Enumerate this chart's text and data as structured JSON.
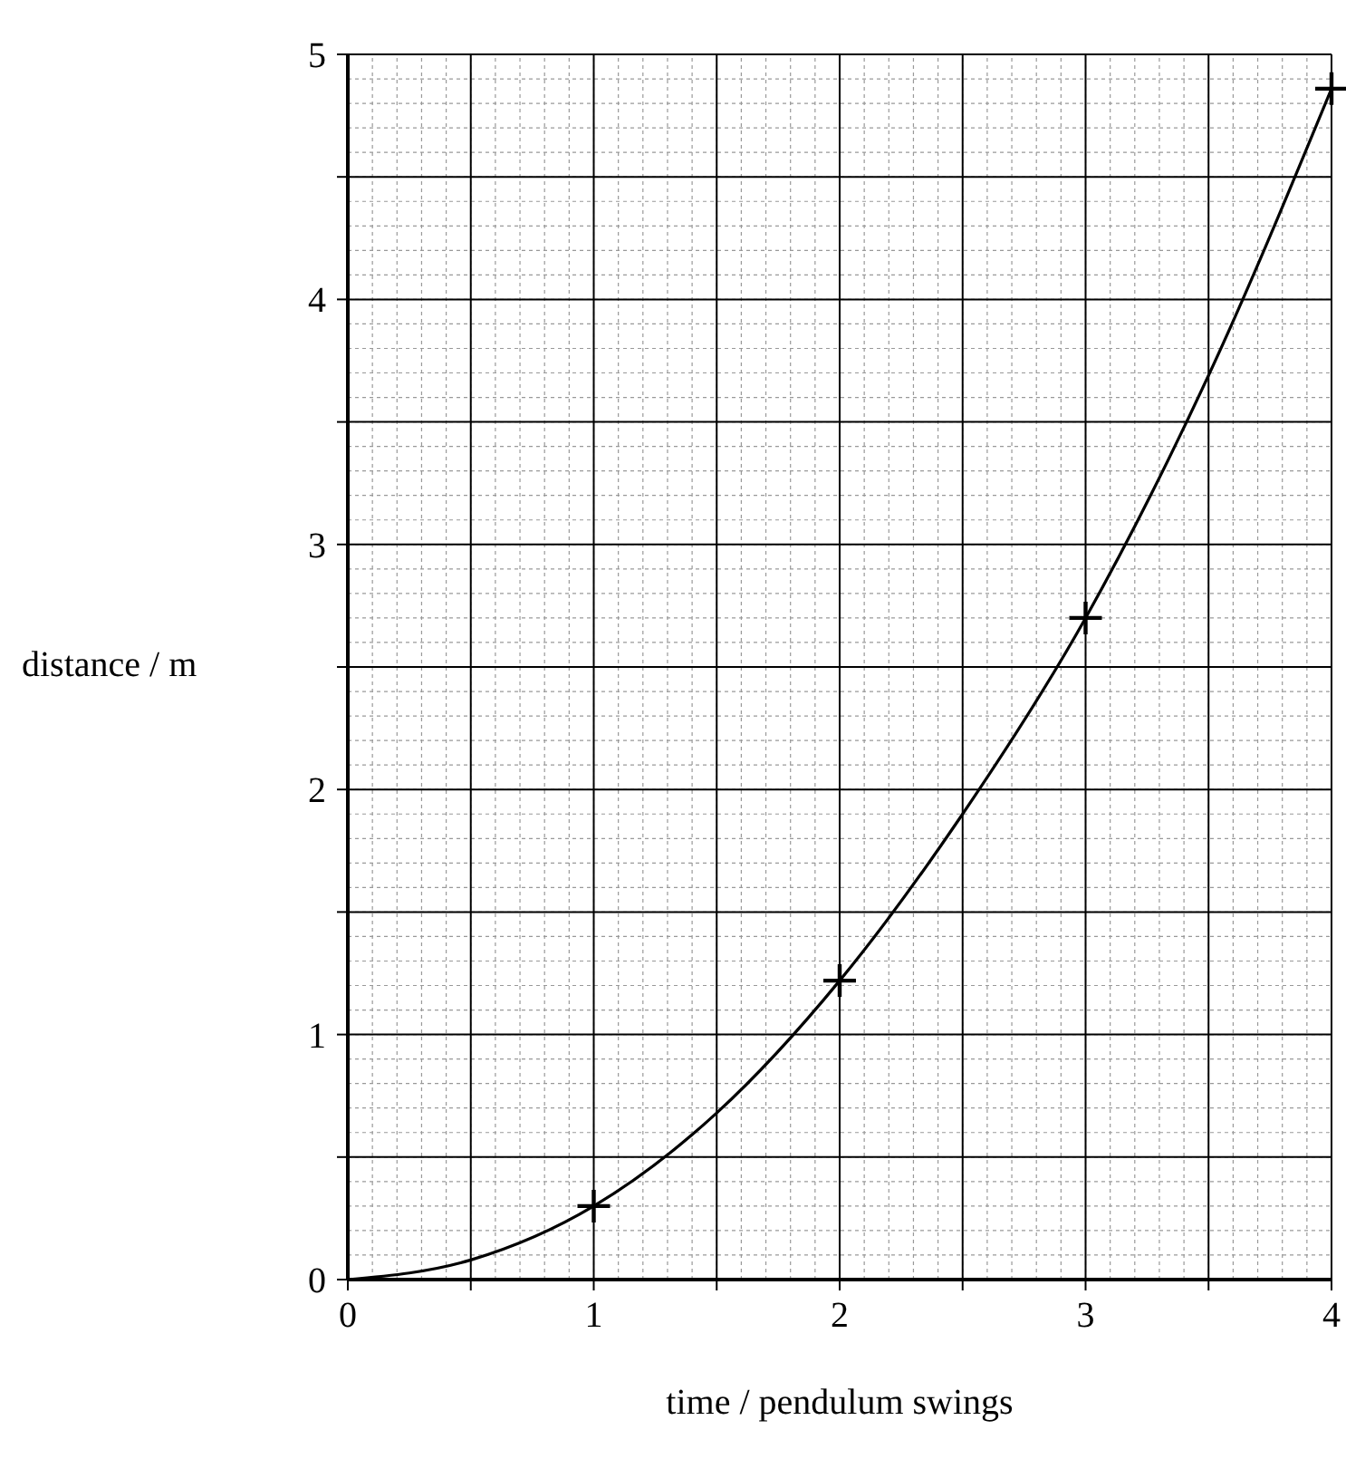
{
  "chart_data": {
    "type": "line",
    "xlabel": "time / pendulum swings",
    "ylabel": "distance / m",
    "xlim": [
      0,
      4
    ],
    "ylim": [
      0,
      5
    ],
    "xticks": [
      0,
      {
        "value": 0.5,
        "label": null
      },
      1,
      {
        "value": 1.5,
        "label": null
      },
      2,
      {
        "value": 2.5,
        "label": null
      },
      3,
      {
        "value": 3.5,
        "label": null
      },
      4
    ],
    "yticks": [
      0,
      {
        "value": 0.5,
        "label": null
      },
      1,
      {
        "value": 1.5,
        "label": null
      },
      2,
      {
        "value": 2.5,
        "label": null
      },
      3,
      {
        "value": 3.5,
        "label": null
      },
      4,
      {
        "value": 4.5,
        "label": null
      },
      5
    ],
    "grid": true,
    "series": [
      {
        "color": "#000000",
        "marker": "none",
        "x": [
          0,
          0.5,
          1,
          1.5,
          2,
          2.5,
          3,
          3.5,
          4
        ],
        "values": [
          0,
          0.08,
          0.3,
          0.68,
          1.22,
          1.9,
          2.7,
          3.69,
          4.86
        ]
      },
      {
        "type": "scatter",
        "color": "#000000",
        "marker": "cross",
        "x": [
          1,
          2,
          3,
          4
        ],
        "values": [
          0.3,
          1.22,
          2.7,
          4.86
        ]
      }
    ]
  }
}
